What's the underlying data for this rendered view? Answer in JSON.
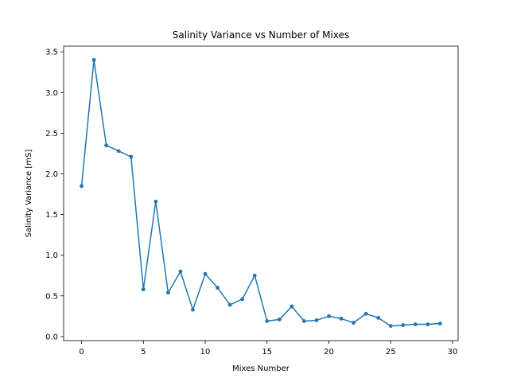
{
  "chart_data": {
    "type": "line",
    "title": "Salinity Variance vs Number of Mixes",
    "xlabel": "Mixes Number",
    "ylabel": "Salinity Variance [mS]",
    "xlim": [
      -1.45,
      30.45
    ],
    "ylim": [
      -0.05,
      3.57
    ],
    "xticks": [
      0,
      5,
      10,
      15,
      20,
      25,
      30
    ],
    "xtick_labels": [
      "0",
      "5",
      "10",
      "15",
      "20",
      "25",
      "30"
    ],
    "yticks": [
      0.0,
      0.5,
      1.0,
      1.5,
      2.0,
      2.5,
      3.0,
      3.5
    ],
    "ytick_labels": [
      "0.0",
      "0.5",
      "1.0",
      "1.5",
      "2.0",
      "2.5",
      "3.0",
      "3.5"
    ],
    "grid": false,
    "legend": "none",
    "color": "#1f77b4",
    "x": [
      0,
      1,
      2,
      3,
      4,
      5,
      6,
      7,
      8,
      9,
      10,
      11,
      12,
      13,
      14,
      15,
      16,
      17,
      18,
      19,
      20,
      21,
      22,
      23,
      24,
      25,
      26,
      27,
      28,
      29
    ],
    "y": [
      1.85,
      3.4,
      2.35,
      2.28,
      2.21,
      0.58,
      1.66,
      0.54,
      0.8,
      0.33,
      0.77,
      0.6,
      0.39,
      0.46,
      0.75,
      0.19,
      0.21,
      0.37,
      0.19,
      0.2,
      0.25,
      0.22,
      0.17,
      0.28,
      0.23,
      0.13,
      0.14,
      0.15,
      0.15,
      0.16
    ]
  }
}
